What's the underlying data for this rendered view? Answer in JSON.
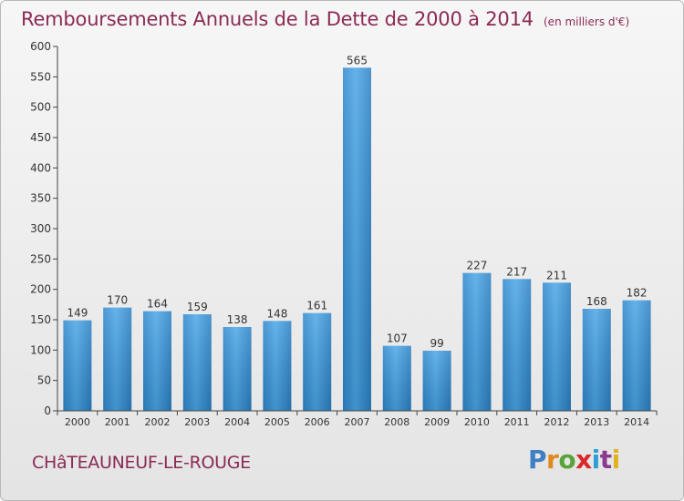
{
  "chart_data": {
    "type": "bar",
    "title": "Remboursements Annuels de la Dette de 2000 à 2014",
    "subtitle": "(en milliers d'€)",
    "categories": [
      "2000",
      "2001",
      "2002",
      "2003",
      "2004",
      "2005",
      "2006",
      "2007",
      "2008",
      "2009",
      "2010",
      "2011",
      "2012",
      "2013",
      "2014"
    ],
    "values": [
      149,
      170,
      164,
      159,
      138,
      148,
      161,
      565,
      107,
      99,
      227,
      217,
      211,
      168,
      182
    ],
    "ylim": [
      0,
      600
    ],
    "yticks": [
      0,
      50,
      100,
      150,
      200,
      250,
      300,
      350,
      400,
      450,
      500,
      550,
      600
    ],
    "xlabel": "",
    "ylabel": "",
    "grid": false,
    "bar_color": "#3d97d9"
  },
  "footer": {
    "commune": "CHâTEAUNEUF-LE-ROUGE",
    "logo": [
      "P",
      "r",
      "o",
      "x",
      "i",
      "t",
      "i"
    ]
  }
}
